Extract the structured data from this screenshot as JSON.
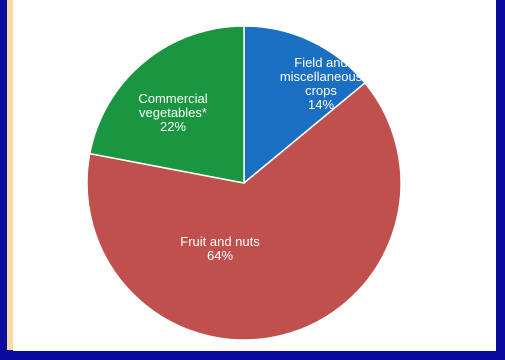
{
  "chart_data": {
    "type": "pie",
    "start_angle_deg": 0,
    "direction": "clockwise",
    "slices": [
      {
        "label_lines": [
          "Field and",
          "miscellaneous",
          "crops"
        ],
        "percent_text": "14%",
        "value": 14,
        "color": "#1a6fc2"
      },
      {
        "label_lines": [
          "Fruit and nuts"
        ],
        "percent_text": "64%",
        "value": 64,
        "color": "#c0504d"
      },
      {
        "label_lines": [
          "Commercial",
          "vegetables*"
        ],
        "percent_text": "22%",
        "value": 22,
        "color": "#1a9641"
      }
    ]
  },
  "colors": {
    "frame": "#0c0c9c",
    "accent_strip": "#f8d9a8",
    "panel": "#ffffff",
    "slice_border": "#ffffff",
    "label_text": "#ffffff"
  }
}
